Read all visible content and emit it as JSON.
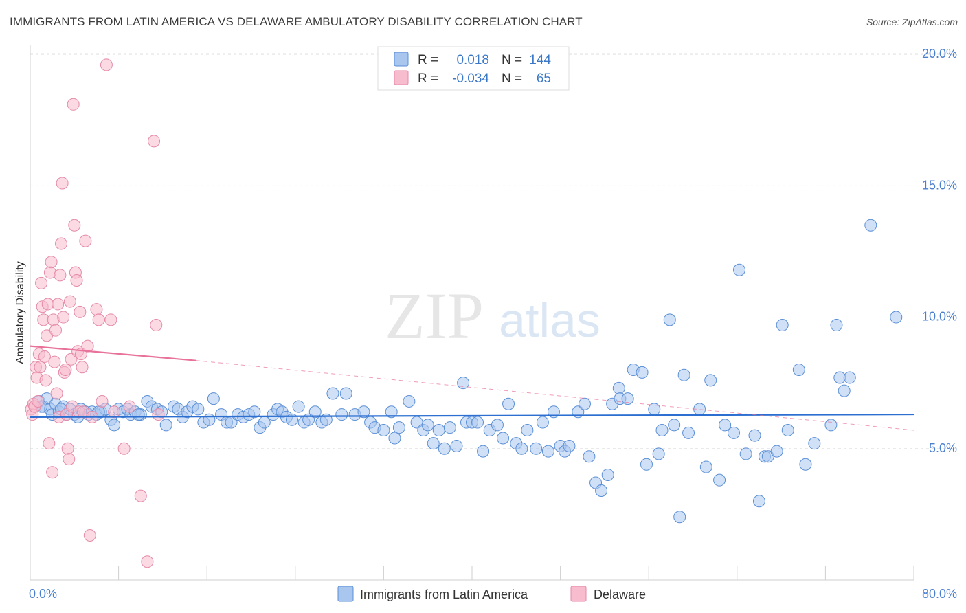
{
  "title": "IMMIGRANTS FROM LATIN AMERICA VS DELAWARE AMBULATORY DISABILITY CORRELATION CHART",
  "source": "Source: ZipAtlas.com",
  "watermark": {
    "zip": "ZIP",
    "atlas": "atlas"
  },
  "legend": {
    "r_label": "R =",
    "n_label": "N =",
    "rows": [
      {
        "r": "0.018",
        "n": "144",
        "color": "#a9c6ef",
        "stroke": "#5b8fd6"
      },
      {
        "r": "-0.034",
        "n": "65",
        "color": "#f7bccd",
        "stroke": "#e58aa7"
      }
    ]
  },
  "chart_data": {
    "type": "scatter",
    "title": "IMMIGRANTS FROM LATIN AMERICA VS DELAWARE AMBULATORY DISABILITY CORRELATION CHART",
    "xlabel": "",
    "ylabel": "Ambulatory Disability",
    "xlim": [
      0,
      80
    ],
    "ylim": [
      0,
      20.5
    ],
    "x_tick_labels": {
      "left": "0.0%",
      "right": "80.0%"
    },
    "y_ticks": [
      {
        "value": 5,
        "label": "5.0%"
      },
      {
        "value": 10,
        "label": "10.0%"
      },
      {
        "value": 15,
        "label": "15.0%"
      },
      {
        "value": 20,
        "label": "20.0%"
      }
    ],
    "series": [
      {
        "name": "Immigrants from Latin America",
        "color": "#a9c6ef",
        "stroke": "#5b8fd6",
        "trend": {
          "x": [
            0,
            80
          ],
          "y": [
            6.2,
            6.3
          ],
          "color": "#2c6fd1"
        },
        "points": [
          [
            0.8,
            6.8
          ],
          [
            1.2,
            6.6
          ],
          [
            1.5,
            6.9
          ],
          [
            1.8,
            6.5
          ],
          [
            2.0,
            6.3
          ],
          [
            2.3,
            6.7
          ],
          [
            2.6,
            6.4
          ],
          [
            3.0,
            6.6
          ],
          [
            3.3,
            6.3
          ],
          [
            3.6,
            6.5
          ],
          [
            4.0,
            6.3
          ],
          [
            4.3,
            6.2
          ],
          [
            4.6,
            6.5
          ],
          [
            5.0,
            6.4
          ],
          [
            5.3,
            6.3
          ],
          [
            5.6,
            6.4
          ],
          [
            6.0,
            6.3
          ],
          [
            6.4,
            6.4
          ],
          [
            6.8,
            6.5
          ],
          [
            7.3,
            6.1
          ],
          [
            7.6,
            5.9
          ],
          [
            8.0,
            6.5
          ],
          [
            8.4,
            6.4
          ],
          [
            8.8,
            6.5
          ],
          [
            9.1,
            6.3
          ],
          [
            9.5,
            6.4
          ],
          [
            10.0,
            6.3
          ],
          [
            10.6,
            6.8
          ],
          [
            11.0,
            6.6
          ],
          [
            11.5,
            6.5
          ],
          [
            11.9,
            6.4
          ],
          [
            12.3,
            5.9
          ],
          [
            13.0,
            6.6
          ],
          [
            13.4,
            6.5
          ],
          [
            13.8,
            6.2
          ],
          [
            14.2,
            6.4
          ],
          [
            14.7,
            6.6
          ],
          [
            15.2,
            6.5
          ],
          [
            15.7,
            6.0
          ],
          [
            16.2,
            6.1
          ],
          [
            16.6,
            6.9
          ],
          [
            17.3,
            6.3
          ],
          [
            17.8,
            6.0
          ],
          [
            18.2,
            6.0
          ],
          [
            18.8,
            6.3
          ],
          [
            19.3,
            6.2
          ],
          [
            19.8,
            6.3
          ],
          [
            20.3,
            6.4
          ],
          [
            20.8,
            5.8
          ],
          [
            21.2,
            6.0
          ],
          [
            22.0,
            6.3
          ],
          [
            22.4,
            6.5
          ],
          [
            22.8,
            6.4
          ],
          [
            23.2,
            6.2
          ],
          [
            23.7,
            6.1
          ],
          [
            24.3,
            6.6
          ],
          [
            24.8,
            6.0
          ],
          [
            25.2,
            6.1
          ],
          [
            25.8,
            6.4
          ],
          [
            26.4,
            6.0
          ],
          [
            26.8,
            6.1
          ],
          [
            27.4,
            7.1
          ],
          [
            28.2,
            6.3
          ],
          [
            28.6,
            7.1
          ],
          [
            29.4,
            6.3
          ],
          [
            30.2,
            6.4
          ],
          [
            30.8,
            6.0
          ],
          [
            31.2,
            5.8
          ],
          [
            32.0,
            5.7
          ],
          [
            32.7,
            6.4
          ],
          [
            33.0,
            5.4
          ],
          [
            33.4,
            5.8
          ],
          [
            34.3,
            6.8
          ],
          [
            35.0,
            6.0
          ],
          [
            35.6,
            5.7
          ],
          [
            36.0,
            5.9
          ],
          [
            36.5,
            5.2
          ],
          [
            37.0,
            5.7
          ],
          [
            37.5,
            5.0
          ],
          [
            38.0,
            5.8
          ],
          [
            38.6,
            5.1
          ],
          [
            39.2,
            7.5
          ],
          [
            39.5,
            6.0
          ],
          [
            40.0,
            6.0
          ],
          [
            40.5,
            6.0
          ],
          [
            41.0,
            4.9
          ],
          [
            41.6,
            5.7
          ],
          [
            42.3,
            5.9
          ],
          [
            42.8,
            5.4
          ],
          [
            43.3,
            6.7
          ],
          [
            44.0,
            5.2
          ],
          [
            44.5,
            5.0
          ],
          [
            45.0,
            5.7
          ],
          [
            45.8,
            5.0
          ],
          [
            46.4,
            6.0
          ],
          [
            46.9,
            4.9
          ],
          [
            47.4,
            6.4
          ],
          [
            48.0,
            5.1
          ],
          [
            48.4,
            4.9
          ],
          [
            48.8,
            5.1
          ],
          [
            49.6,
            6.4
          ],
          [
            50.2,
            6.7
          ],
          [
            50.6,
            4.7
          ],
          [
            51.2,
            3.7
          ],
          [
            51.7,
            3.4
          ],
          [
            52.3,
            4.0
          ],
          [
            52.7,
            6.7
          ],
          [
            53.3,
            7.3
          ],
          [
            53.4,
            6.9
          ],
          [
            54.1,
            6.9
          ],
          [
            54.6,
            8.0
          ],
          [
            55.4,
            7.9
          ],
          [
            55.8,
            4.4
          ],
          [
            56.5,
            6.5
          ],
          [
            56.9,
            4.8
          ],
          [
            57.2,
            5.7
          ],
          [
            57.9,
            9.9
          ],
          [
            58.3,
            5.9
          ],
          [
            58.8,
            2.4
          ],
          [
            59.2,
            7.8
          ],
          [
            59.6,
            5.6
          ],
          [
            60.6,
            6.5
          ],
          [
            61.2,
            4.3
          ],
          [
            61.6,
            7.6
          ],
          [
            62.4,
            3.8
          ],
          [
            62.9,
            5.9
          ],
          [
            63.7,
            5.6
          ],
          [
            64.2,
            11.8
          ],
          [
            64.8,
            4.8
          ],
          [
            65.6,
            5.5
          ],
          [
            66.0,
            3.0
          ],
          [
            66.5,
            4.7
          ],
          [
            66.8,
            4.7
          ],
          [
            67.6,
            4.9
          ],
          [
            68.1,
            9.7
          ],
          [
            68.6,
            5.7
          ],
          [
            69.6,
            8.0
          ],
          [
            70.2,
            4.4
          ],
          [
            71.0,
            5.2
          ],
          [
            72.5,
            5.9
          ],
          [
            73.0,
            9.7
          ],
          [
            73.3,
            7.7
          ],
          [
            73.7,
            7.2
          ],
          [
            74.2,
            7.7
          ],
          [
            76.1,
            13.5
          ],
          [
            78.4,
            10.0
          ],
          [
            1.0,
            6.6
          ],
          [
            2.8,
            6.5
          ],
          [
            6.2,
            6.4
          ],
          [
            9.8,
            6.3
          ]
        ]
      },
      {
        "name": "Delaware",
        "color": "#f7bccd",
        "stroke": "#e58aa7",
        "trend": {
          "x": [
            0,
            15
          ],
          "y": [
            8.9,
            8.35
          ],
          "color": "#e8729a",
          "dashed_to": {
            "x": 80,
            "y": 5.7
          }
        },
        "points": [
          [
            0.1,
            6.5
          ],
          [
            0.2,
            6.3
          ],
          [
            0.3,
            6.7
          ],
          [
            0.4,
            6.6
          ],
          [
            0.5,
            8.1
          ],
          [
            0.6,
            7.7
          ],
          [
            0.7,
            6.8
          ],
          [
            0.8,
            8.6
          ],
          [
            0.9,
            8.1
          ],
          [
            1.0,
            11.3
          ],
          [
            1.1,
            10.4
          ],
          [
            1.2,
            9.9
          ],
          [
            1.3,
            8.5
          ],
          [
            1.4,
            7.6
          ],
          [
            1.5,
            9.3
          ],
          [
            1.6,
            10.5
          ],
          [
            1.7,
            5.2
          ],
          [
            1.8,
            11.7
          ],
          [
            1.9,
            12.1
          ],
          [
            2.0,
            4.1
          ],
          [
            2.1,
            9.9
          ],
          [
            2.2,
            8.3
          ],
          [
            2.3,
            9.5
          ],
          [
            2.4,
            7.1
          ],
          [
            2.5,
            10.5
          ],
          [
            2.6,
            6.2
          ],
          [
            2.7,
            11.6
          ],
          [
            2.8,
            12.8
          ],
          [
            2.9,
            15.1
          ],
          [
            3.0,
            10.0
          ],
          [
            3.1,
            7.9
          ],
          [
            3.2,
            8.0
          ],
          [
            3.3,
            6.3
          ],
          [
            3.4,
            5.0
          ],
          [
            3.5,
            4.6
          ],
          [
            3.6,
            10.6
          ],
          [
            3.7,
            8.4
          ],
          [
            3.8,
            6.6
          ],
          [
            3.9,
            18.1
          ],
          [
            4.0,
            13.5
          ],
          [
            4.1,
            11.7
          ],
          [
            4.2,
            11.4
          ],
          [
            4.3,
            8.7
          ],
          [
            4.4,
            6.4
          ],
          [
            4.5,
            10.2
          ],
          [
            4.6,
            8.6
          ],
          [
            4.7,
            8.1
          ],
          [
            4.8,
            6.4
          ],
          [
            5.0,
            12.9
          ],
          [
            5.2,
            8.9
          ],
          [
            5.4,
            1.7
          ],
          [
            5.6,
            6.2
          ],
          [
            6.0,
            10.3
          ],
          [
            6.2,
            9.9
          ],
          [
            6.5,
            6.8
          ],
          [
            6.9,
            19.6
          ],
          [
            7.3,
            9.9
          ],
          [
            7.6,
            6.4
          ],
          [
            8.5,
            5.0
          ],
          [
            9.0,
            6.6
          ],
          [
            10.0,
            3.2
          ],
          [
            10.6,
            0.7
          ],
          [
            11.2,
            16.7
          ],
          [
            11.4,
            9.7
          ],
          [
            11.6,
            6.3
          ]
        ]
      }
    ]
  },
  "bottom_legend": [
    {
      "label": "Immigrants from Latin America",
      "color": "#a9c6ef",
      "stroke": "#5b8fd6"
    },
    {
      "label": "Delaware",
      "color": "#f7bccd",
      "stroke": "#e58aa7"
    }
  ]
}
